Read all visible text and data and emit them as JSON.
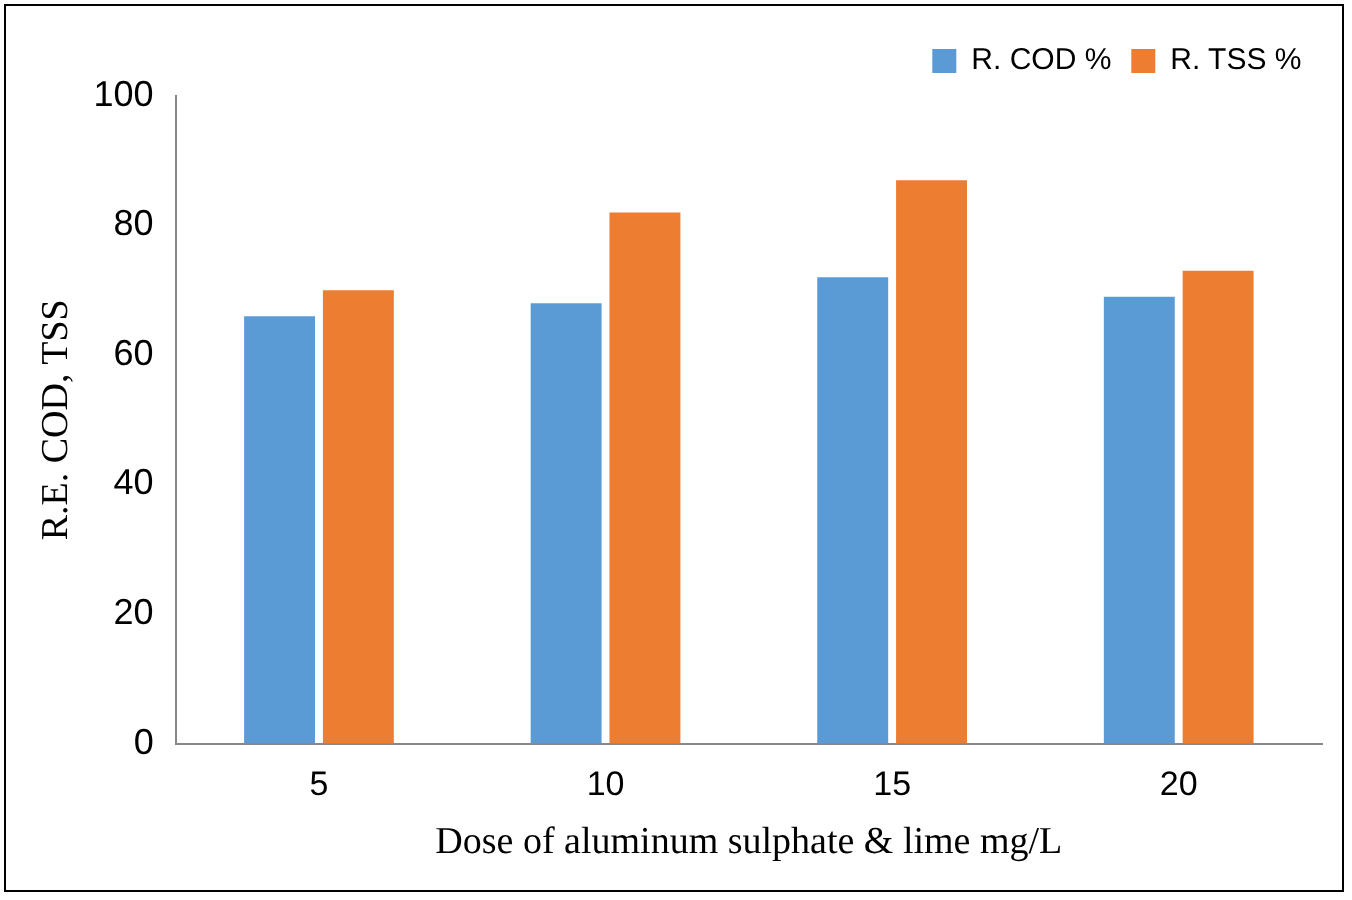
{
  "chart_data": {
    "type": "bar",
    "xlabel": "Dose of aluminum sulphate & lime mg/L",
    "ylabel": "R.E. COD, TSS",
    "categories": [
      "5",
      "10",
      "15",
      "20"
    ],
    "series": [
      {
        "name": "R. COD %",
        "color": "#5b9bd5",
        "values": [
          66,
          68,
          72,
          69
        ]
      },
      {
        "name": "R. TSS %",
        "color": "#ed7d31",
        "values": [
          70,
          82,
          87,
          73
        ]
      }
    ],
    "ylim": [
      0,
      100
    ],
    "yticks": [
      0,
      20,
      40,
      60,
      80,
      100
    ],
    "grid": false,
    "legend": "top right"
  }
}
